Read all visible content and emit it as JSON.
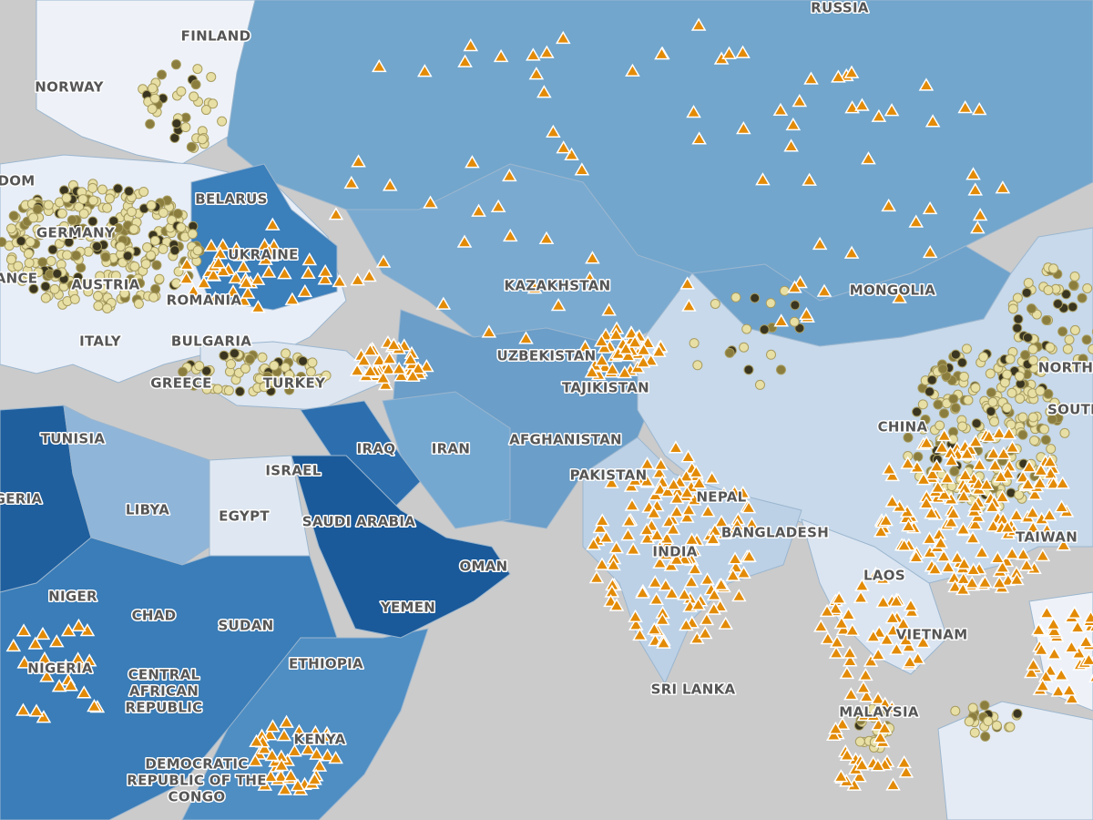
{
  "map": {
    "labels": [
      "RUSSIA",
      "FINLAND",
      "NORWAY",
      "DOM",
      "BELARUS",
      "GERMANY",
      "UKRAINE",
      "ANCE",
      "AUSTRIA",
      "ROMANIA",
      "KAZAKHSTAN",
      "MONGOLIA",
      "ITALY",
      "BULGARIA",
      "GREECE",
      "TURKEY",
      "UZBEKISTAN",
      "TAJIKISTAN",
      "NORTH",
      "SOUTH",
      "CHINA",
      "TUNISIA",
      "IRAQ",
      "IRAN",
      "AFGHANISTAN",
      "ISRAEL",
      "PAKISTAN",
      "GERIA",
      "LIBYA",
      "EGYPT",
      "SAUDI ARABIA",
      "NEPAL",
      "BANGLADESH",
      "TAIWAN",
      "OMAN",
      "INDIA",
      "LAOS",
      "NIGER",
      "CHAD",
      "YEMEN",
      "SUDAN",
      "VIETNAM",
      "NIGERIA",
      "ETHIOPIA",
      [
        "CENTRAL",
        "AFRICAN",
        "REPUBLIC"
      ],
      "SRI LANKA",
      "MALAYSIA",
      "KENYA",
      [
        "DEMOCRATIC",
        "REPUBLIC OF THE",
        "CONGO"
      ]
    ]
  }
}
